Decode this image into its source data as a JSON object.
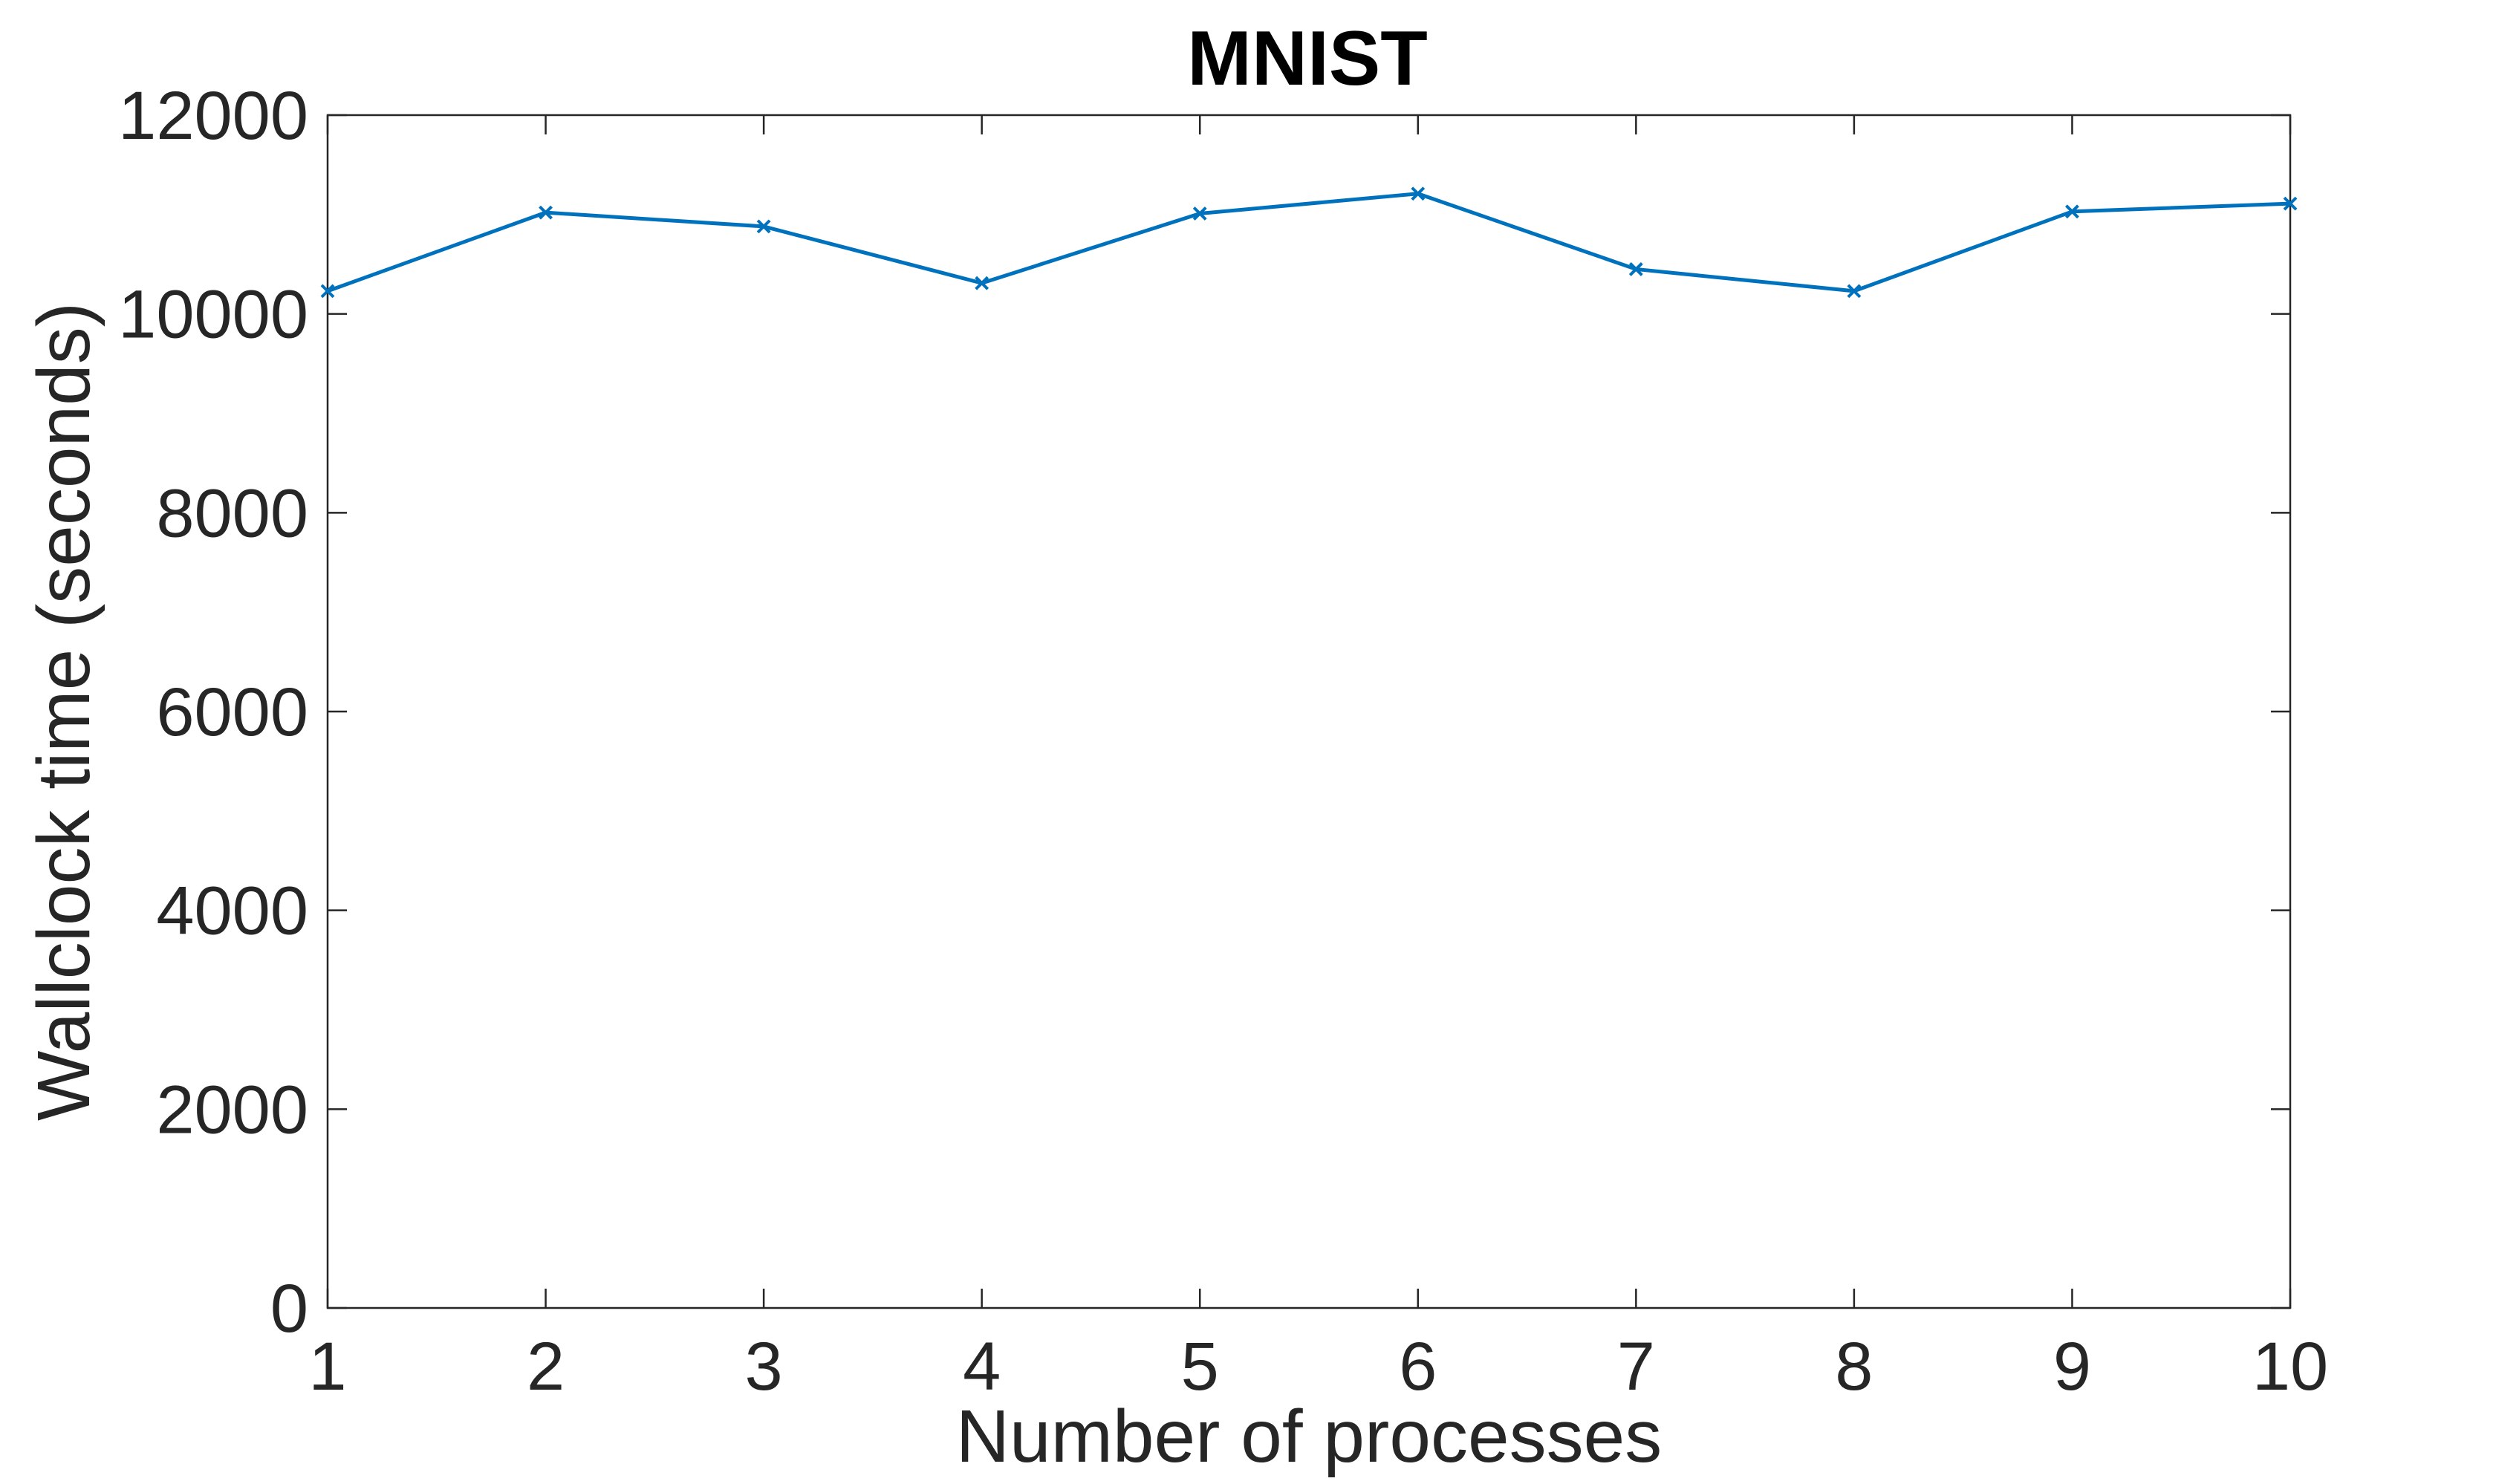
{
  "chart_data": {
    "type": "line",
    "title": "MNIST",
    "xlabel": "Number of processes",
    "ylabel": "Wallclock time (seconds)",
    "x": [
      1,
      2,
      3,
      4,
      5,
      6,
      7,
      8,
      9,
      10
    ],
    "xlim": [
      1,
      10
    ],
    "ylim": [
      0,
      12000
    ],
    "xticks": [
      1,
      2,
      3,
      4,
      5,
      6,
      7,
      8,
      9,
      10
    ],
    "yticks": [
      0,
      2000,
      4000,
      6000,
      8000,
      10000,
      12000
    ],
    "grid": false,
    "series": [
      {
        "values": [
          10230,
          11020,
          10880,
          10310,
          11010,
          11210,
          10450,
          10230,
          11030,
          11110
        ],
        "color": "#0072BD",
        "marker": "x"
      }
    ]
  }
}
